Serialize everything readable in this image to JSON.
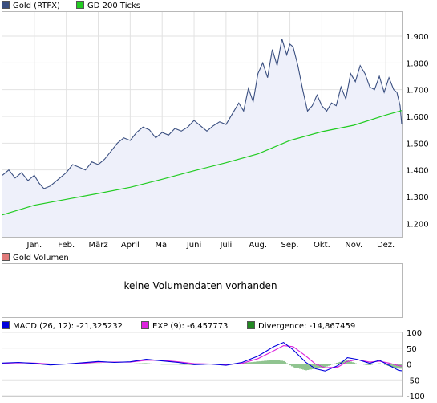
{
  "legend_top": [
    {
      "label": "Gold (RTFX)",
      "color": "#3a4f80"
    },
    {
      "label": "GD 200 Ticks",
      "color": "#22cc22"
    }
  ],
  "legend_volume": {
    "label": "Gold Volumen",
    "color": "#e07a7a"
  },
  "volume_message": "keine Volumendaten vorhanden",
  "legend_bottom": [
    {
      "label": "MACD (26, 12): -21,325232",
      "color": "#0000dd"
    },
    {
      "label": "EXP (9): -6,457773",
      "color": "#dd22dd"
    },
    {
      "label": "Divergence: -14,867459",
      "color": "#228822"
    }
  ],
  "chart_data": [
    {
      "type": "line",
      "xlabels": [
        "Jan.",
        "Feb.",
        "März",
        "April",
        "Mai",
        "Juni",
        "Juli",
        "Aug.",
        "Sep.",
        "Okt.",
        "Nov.",
        "Dez."
      ],
      "xtick_pos": [
        0.5,
        1.5,
        2.5,
        3.5,
        4.5,
        5.5,
        6.5,
        7.5,
        8.5,
        9.5,
        10.5,
        11.5
      ],
      "xlim": [
        -0.5,
        12
      ],
      "ylim": [
        1150,
        1990
      ],
      "yticks": [
        1200,
        1300,
        1400,
        1500,
        1600,
        1700,
        1800,
        1900
      ],
      "yticklabels": [
        "1.200",
        "1.300",
        "1.400",
        "1.500",
        "1.600",
        "1.700",
        "1.800",
        "1.900"
      ],
      "series": [
        {
          "name": "Gold (RTFX)",
          "area": true,
          "x": [
            -0.5,
            -0.3,
            -0.1,
            0.1,
            0.3,
            0.5,
            0.65,
            0.8,
            1.0,
            1.15,
            1.3,
            1.5,
            1.7,
            1.9,
            2.1,
            2.3,
            2.5,
            2.7,
            2.9,
            3.1,
            3.3,
            3.5,
            3.7,
            3.9,
            4.1,
            4.3,
            4.5,
            4.7,
            4.9,
            5.1,
            5.3,
            5.5,
            5.7,
            5.9,
            6.1,
            6.3,
            6.5,
            6.7,
            6.9,
            7.05,
            7.2,
            7.35,
            7.5,
            7.65,
            7.8,
            7.95,
            8.1,
            8.25,
            8.4,
            8.5,
            8.6,
            8.75,
            8.9,
            9.05,
            9.2,
            9.35,
            9.5,
            9.65,
            9.8,
            9.95,
            10.1,
            10.25,
            10.4,
            10.55,
            10.7,
            10.85,
            11.0,
            11.15,
            11.3,
            11.45,
            11.6,
            11.75,
            11.85,
            11.95,
            12.0
          ],
          "y": [
            1380,
            1400,
            1370,
            1390,
            1360,
            1380,
            1350,
            1330,
            1340,
            1355,
            1370,
            1390,
            1420,
            1410,
            1400,
            1430,
            1420,
            1440,
            1470,
            1500,
            1520,
            1510,
            1540,
            1560,
            1550,
            1520,
            1540,
            1530,
            1555,
            1545,
            1560,
            1585,
            1565,
            1545,
            1565,
            1580,
            1570,
            1610,
            1650,
            1620,
            1705,
            1655,
            1760,
            1800,
            1745,
            1850,
            1790,
            1890,
            1830,
            1870,
            1860,
            1790,
            1700,
            1620,
            1640,
            1680,
            1640,
            1620,
            1650,
            1640,
            1710,
            1665,
            1760,
            1730,
            1790,
            1760,
            1710,
            1700,
            1750,
            1690,
            1745,
            1700,
            1690,
            1640,
            1570
          ]
        },
        {
          "name": "GD 200 Ticks",
          "area": false,
          "x": [
            -0.5,
            0.5,
            1.5,
            2.5,
            3.5,
            4.5,
            5.5,
            6.5,
            7.5,
            8.5,
            9.5,
            10.5,
            11.5,
            12.0
          ],
          "y": [
            1232,
            1268,
            1290,
            1312,
            1335,
            1365,
            1397,
            1427,
            1460,
            1510,
            1543,
            1567,
            1605,
            1622
          ]
        }
      ]
    },
    {
      "type": "line",
      "xlim": [
        -0.5,
        12
      ],
      "ylim": [
        -100,
        100
      ],
      "yticks": [
        -100,
        -50,
        0,
        50,
        100
      ],
      "yticklabels": [
        "-100",
        "-50",
        "0",
        "50",
        "100"
      ],
      "series": [
        {
          "name": "MACD (26, 12)",
          "x": [
            -0.5,
            0.0,
            0.5,
            1.0,
            1.5,
            2.0,
            2.5,
            3.0,
            3.5,
            4.0,
            4.5,
            5.0,
            5.5,
            6.0,
            6.5,
            7.0,
            7.5,
            8.0,
            8.3,
            8.6,
            9.0,
            9.3,
            9.6,
            10.0,
            10.3,
            10.6,
            11.0,
            11.3,
            11.6,
            11.9,
            12.0
          ],
          "y": [
            3,
            5,
            2,
            -3,
            0,
            4,
            8,
            5,
            7,
            15,
            10,
            5,
            -2,
            0,
            -4,
            5,
            25,
            55,
            68,
            45,
            5,
            -15,
            -22,
            -5,
            20,
            15,
            2,
            12,
            -4,
            -20,
            -21.3
          ]
        },
        {
          "name": "EXP (9)",
          "x": [
            -0.5,
            0.0,
            0.5,
            1.0,
            1.5,
            2.0,
            2.5,
            3.0,
            3.5,
            4.0,
            4.5,
            5.0,
            5.5,
            6.0,
            6.5,
            7.0,
            7.5,
            8.0,
            8.3,
            8.6,
            9.0,
            9.3,
            9.6,
            10.0,
            10.3,
            10.6,
            11.0,
            11.3,
            11.6,
            11.9,
            12.0
          ],
          "y": [
            2,
            4,
            3,
            0,
            0,
            2,
            6,
            6,
            6,
            12,
            12,
            7,
            1,
            0,
            -2,
            2,
            17,
            42,
            58,
            55,
            25,
            0,
            -12,
            -10,
            8,
            14,
            6,
            9,
            3,
            -5,
            -6.5
          ]
        },
        {
          "name": "Divergence",
          "x": [
            -0.5,
            0.0,
            0.5,
            1.0,
            1.5,
            2.0,
            2.5,
            3.0,
            3.5,
            4.0,
            4.5,
            5.0,
            5.5,
            6.0,
            6.5,
            7.0,
            7.5,
            8.0,
            8.3,
            8.6,
            9.0,
            9.3,
            9.6,
            10.0,
            10.3,
            10.6,
            11.0,
            11.3,
            11.6,
            11.9,
            12.0
          ],
          "y": [
            1,
            1,
            -1,
            -3,
            0,
            2,
            2,
            -1,
            1,
            3,
            -2,
            -2,
            -3,
            0,
            -2,
            3,
            8,
            13,
            10,
            -10,
            -20,
            -15,
            -10,
            5,
            12,
            1,
            -4,
            3,
            -7,
            -15,
            -14.9
          ]
        }
      ]
    }
  ]
}
